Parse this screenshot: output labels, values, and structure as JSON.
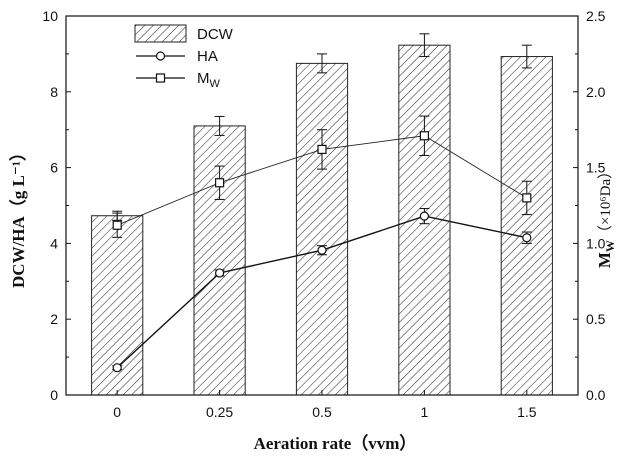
{
  "chart_data": {
    "type": "bar",
    "categories": [
      "0",
      "0.25",
      "0.5",
      "1",
      "1.5"
    ],
    "xlabel": "Aeration rate（vvm）",
    "ylabel": "DCW/HA（g L⁻¹）",
    "y2label_main": "M",
    "y2label_sub": "W",
    "y2label_rest": "（×10⁶Da）",
    "ylim": [
      0,
      10
    ],
    "y2lim": [
      0,
      2.5
    ],
    "yticks": [
      "0",
      "2",
      "4",
      "6",
      "8",
      "10"
    ],
    "y2ticks": [
      "0.0",
      "0.5",
      "1.0",
      "1.5",
      "2.0",
      "2.5"
    ],
    "grid": false,
    "legend_position": "top-left",
    "series": [
      {
        "name": "DCW",
        "kind": "bar",
        "axis": "left",
        "values": [
          4.73,
          7.1,
          8.75,
          9.23,
          8.93
        ],
        "errors": [
          0.12,
          0.25,
          0.25,
          0.3,
          0.3
        ]
      },
      {
        "name": "HA",
        "kind": "line",
        "marker": "circle",
        "axis": "left",
        "values": [
          0.72,
          3.22,
          3.82,
          4.72,
          4.15
        ],
        "errors": [
          0.05,
          0.08,
          0.12,
          0.2,
          0.15
        ]
      },
      {
        "name": "M",
        "name_sub": "W",
        "kind": "line",
        "marker": "square",
        "axis": "right",
        "values": [
          1.12,
          1.4,
          1.62,
          1.71,
          1.3
        ],
        "errors": [
          0.08,
          0.11,
          0.13,
          0.13,
          0.11
        ]
      }
    ]
  }
}
